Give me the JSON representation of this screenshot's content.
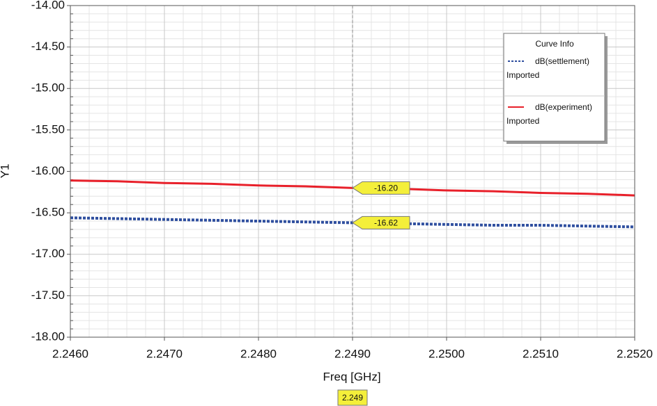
{
  "chart_data": {
    "type": "line",
    "xlabel": "Freq [GHz]",
    "ylabel": "Y1",
    "x": [
      2.246,
      2.2465,
      2.247,
      2.2475,
      2.248,
      2.2485,
      2.249,
      2.2495,
      2.25,
      2.2505,
      2.251,
      2.2515,
      2.252
    ],
    "series": [
      {
        "name": "dB(settlement)",
        "source": "Imported",
        "color": "#2f4f9f",
        "style": "dotted",
        "values": [
          -16.56,
          -16.57,
          -16.58,
          -16.59,
          -16.6,
          -16.61,
          -16.62,
          -16.63,
          -16.64,
          -16.65,
          -16.65,
          -16.66,
          -16.67
        ]
      },
      {
        "name": "dB(experiment)",
        "source": "Imported",
        "color": "#e8202a",
        "style": "solid",
        "values": [
          -16.11,
          -16.12,
          -16.14,
          -16.15,
          -16.17,
          -16.18,
          -16.2,
          -16.21,
          -16.23,
          -16.24,
          -16.26,
          -16.27,
          -16.29
        ]
      }
    ],
    "xlim": [
      2.246,
      2.252
    ],
    "xticks": [
      {
        "value": 2.246,
        "label": "2.2460"
      },
      {
        "value": 2.247,
        "label": "2.2470"
      },
      {
        "value": 2.248,
        "label": "2.2480"
      },
      {
        "value": 2.249,
        "label": "2.2490"
      },
      {
        "value": 2.25,
        "label": "2.2500"
      },
      {
        "value": 2.251,
        "label": "2.2510"
      },
      {
        "value": 2.252,
        "label": "2.2520"
      }
    ],
    "ylim": [
      -18,
      -14
    ],
    "yticks": [
      {
        "value": -14,
        "label": "-14.00"
      },
      {
        "value": -14.5,
        "label": "-14.50"
      },
      {
        "value": -15,
        "label": "-15.00"
      },
      {
        "value": -15.5,
        "label": "-15.50"
      },
      {
        "value": -16,
        "label": "-16.00"
      },
      {
        "value": -16.5,
        "label": "-16.50"
      },
      {
        "value": -17,
        "label": "-17.00"
      },
      {
        "value": -17.5,
        "label": "-17.50"
      },
      {
        "value": -18,
        "label": "-18.00"
      }
    ],
    "grid": true,
    "minor_divisions": 5,
    "legend": {
      "title": "Curve Info",
      "position": "upper right"
    },
    "marker": {
      "x": 2.249,
      "values": [
        -16.2,
        -16.62
      ],
      "value_labels": [
        "-16.20",
        "-16.62"
      ]
    }
  }
}
